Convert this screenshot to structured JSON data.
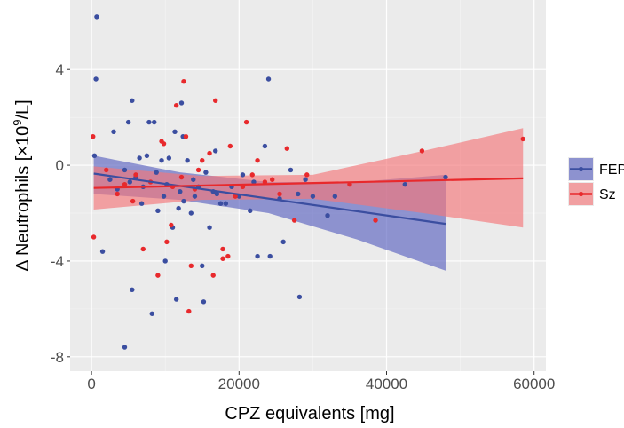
{
  "chart_data": {
    "type": "scatter",
    "title": "",
    "xlabel": "CPZ equivalents [mg]",
    "ylabel_prefix": "Δ Neutrophils [×10",
    "ylabel_exponent": "9",
    "ylabel_suffix": "/L]",
    "xlim": [
      -2900,
      61600
    ],
    "ylim": [
      -8.6,
      6.9
    ],
    "x_ticks": [
      0,
      20000,
      40000,
      60000
    ],
    "x_tick_labels": [
      "0",
      "20000",
      "40000",
      "60000"
    ],
    "y_ticks": [
      -8,
      -4,
      0,
      4
    ],
    "y_tick_labels": [
      "-8",
      "-4",
      "0",
      "4"
    ],
    "grid": true,
    "legend_position": "right",
    "series": [
      {
        "name": "FEP",
        "color": "#3b4ea0",
        "band_color": "#5a62c0",
        "fit_line": {
          "x": [
            300,
            48000
          ],
          "y": [
            -0.35,
            -2.45
          ]
        },
        "ci_band": {
          "x": [
            300,
            12000,
            24000,
            36000,
            48000
          ],
          "upper": [
            0.4,
            -0.3,
            -0.7,
            -0.7,
            -0.4
          ],
          "lower": [
            -1.2,
            -1.45,
            -2.0,
            -3.1,
            -4.4
          ]
        },
        "points": [
          [
            700,
            6.2
          ],
          [
            600,
            3.6
          ],
          [
            400,
            0.4
          ],
          [
            1500,
            -3.6
          ],
          [
            3000,
            1.4
          ],
          [
            4500,
            -7.6
          ],
          [
            5500,
            -5.2
          ],
          [
            5500,
            2.7
          ],
          [
            5000,
            1.8
          ],
          [
            6500,
            0.3
          ],
          [
            7800,
            1.8
          ],
          [
            8500,
            1.8
          ],
          [
            8200,
            -6.2
          ],
          [
            9000,
            -1.9
          ],
          [
            10000,
            -4.0
          ],
          [
            10500,
            0.3
          ],
          [
            11000,
            -2.6
          ],
          [
            11500,
            -5.6
          ],
          [
            11300,
            1.4
          ],
          [
            12200,
            2.6
          ],
          [
            12400,
            1.2
          ],
          [
            13000,
            0.2
          ],
          [
            12000,
            -1.1
          ],
          [
            12500,
            -1.5
          ],
          [
            13500,
            -2.0
          ],
          [
            15000,
            -4.2
          ],
          [
            15200,
            -5.7
          ],
          [
            14000,
            -1.3
          ],
          [
            16000,
            -2.6
          ],
          [
            16500,
            -1.1
          ],
          [
            17500,
            -1.6
          ],
          [
            16800,
            0.6
          ],
          [
            18200,
            -1.6
          ],
          [
            20000,
            -1.3
          ],
          [
            21500,
            -1.9
          ],
          [
            22500,
            -3.8
          ],
          [
            23500,
            0.8
          ],
          [
            24000,
            3.6
          ],
          [
            24200,
            -3.8
          ],
          [
            25500,
            -1.4
          ],
          [
            26000,
            -3.2
          ],
          [
            27000,
            -0.2
          ],
          [
            28000,
            -1.2
          ],
          [
            28200,
            -5.5
          ],
          [
            29000,
            -0.6
          ],
          [
            30000,
            -1.3
          ],
          [
            32000,
            -2.1
          ],
          [
            33000,
            -1.3
          ],
          [
            42500,
            -0.8
          ],
          [
            48000,
            -0.5
          ],
          [
            3500,
            -1.0
          ],
          [
            4500,
            -0.2
          ],
          [
            6000,
            -0.5
          ],
          [
            7000,
            -0.9
          ],
          [
            7500,
            0.4
          ],
          [
            8800,
            -0.3
          ],
          [
            9500,
            0.2
          ],
          [
            10200,
            -0.8
          ],
          [
            11800,
            -1.8
          ],
          [
            13800,
            -0.6
          ],
          [
            15500,
            -0.3
          ],
          [
            19000,
            -0.9
          ],
          [
            20500,
            -0.4
          ],
          [
            2500,
            -0.6
          ],
          [
            5200,
            -0.7
          ],
          [
            6800,
            -1.6
          ],
          [
            9800,
            -1.3
          ],
          [
            14500,
            -0.9
          ],
          [
            17000,
            -1.2
          ],
          [
            22000,
            -0.7
          ]
        ]
      },
      {
        "name": "Sz",
        "color": "#e8292c",
        "band_color": "#f4767a",
        "fit_line": {
          "x": [
            300,
            58500
          ],
          "y": [
            -0.95,
            -0.55
          ]
        },
        "ci_band": {
          "x": [
            300,
            15000,
            30000,
            45000,
            58500
          ],
          "upper": [
            -0.05,
            -0.45,
            -0.4,
            0.6,
            1.55
          ],
          "lower": [
            -1.85,
            -1.45,
            -1.4,
            -2.0,
            -2.6
          ]
        },
        "points": [
          [
            200,
            1.2
          ],
          [
            300,
            -3.0
          ],
          [
            4500,
            -0.8
          ],
          [
            5600,
            -1.5
          ],
          [
            7000,
            -3.5
          ],
          [
            9000,
            -4.6
          ],
          [
            9800,
            0.9
          ],
          [
            10200,
            -3.2
          ],
          [
            10800,
            -2.5
          ],
          [
            11500,
            2.5
          ],
          [
            12500,
            3.5
          ],
          [
            12800,
            1.2
          ],
          [
            13500,
            -4.2
          ],
          [
            13200,
            -6.1
          ],
          [
            14500,
            -0.2
          ],
          [
            15000,
            0.2
          ],
          [
            16000,
            0.5
          ],
          [
            16500,
            -4.6
          ],
          [
            17800,
            -3.5
          ],
          [
            17800,
            -3.9
          ],
          [
            18500,
            -3.8
          ],
          [
            18800,
            0.8
          ],
          [
            21000,
            1.8
          ],
          [
            21800,
            -0.4
          ],
          [
            22500,
            0.2
          ],
          [
            23500,
            -0.7
          ],
          [
            24500,
            -0.6
          ],
          [
            26500,
            0.7
          ],
          [
            27500,
            -2.3
          ],
          [
            29200,
            -0.4
          ],
          [
            35000,
            -0.8
          ],
          [
            38500,
            -2.3
          ],
          [
            44800,
            0.6
          ],
          [
            58500,
            1.1
          ],
          [
            2000,
            -0.2
          ],
          [
            3500,
            -1.2
          ],
          [
            6000,
            -0.4
          ],
          [
            8000,
            -0.7
          ],
          [
            11000,
            -0.9
          ],
          [
            14000,
            -1.0
          ],
          [
            19500,
            -1.3
          ],
          [
            20500,
            -0.9
          ],
          [
            25500,
            -1.2
          ],
          [
            16800,
            2.7
          ],
          [
            9500,
            1.0
          ],
          [
            12200,
            -0.5
          ]
        ]
      }
    ]
  }
}
